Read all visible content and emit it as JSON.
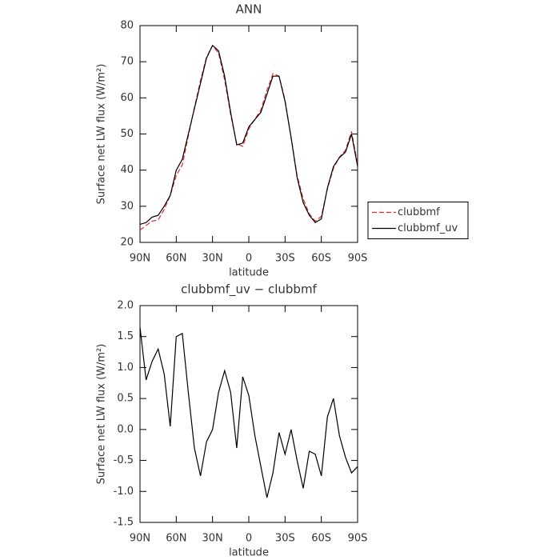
{
  "chart_data": [
    {
      "type": "line",
      "title": "ANN",
      "xlabel": "latitude",
      "ylabel": "Surface net LW flux (W/m²)",
      "x": [
        90,
        85,
        80,
        75,
        70,
        65,
        60,
        55,
        50,
        45,
        40,
        35,
        30,
        25,
        20,
        15,
        10,
        5,
        0,
        -5,
        -10,
        -15,
        -20,
        -25,
        -30,
        -35,
        -40,
        -45,
        -50,
        -55,
        -60,
        -65,
        -70,
        -75,
        -80,
        -85,
        -90
      ],
      "xlim": [
        90,
        -90
      ],
      "xticks": [
        {
          "value": 90,
          "label": "90N"
        },
        {
          "value": 60,
          "label": "60N"
        },
        {
          "value": 30,
          "label": "30N"
        },
        0,
        {
          "value": -30,
          "label": "30S"
        },
        {
          "value": -60,
          "label": "60S"
        },
        {
          "value": -90,
          "label": "90S"
        }
      ],
      "ylim": [
        20,
        80
      ],
      "yticks": [
        20,
        30,
        40,
        50,
        60,
        70,
        80
      ],
      "legend": "right",
      "series": [
        {
          "name": "clubbmf",
          "color": "#e8262b",
          "dash": true,
          "values": [
            23.4,
            24.7,
            25.9,
            26.2,
            29.1,
            33.0,
            38.5,
            41.5,
            49.4,
            57.3,
            64.8,
            71.2,
            74.5,
            72.4,
            65.0,
            55.4,
            47.3,
            46.6,
            51.4,
            54.1,
            56.6,
            62.1,
            66.7,
            66.0,
            59.4,
            49.0,
            38.5,
            32.0,
            27.9,
            25.9,
            27.2,
            34.8,
            40.5,
            43.6,
            45.5,
            50.7,
            41.6
          ]
        },
        {
          "name": "clubbmf_uv",
          "color": "#000000",
          "dash": false,
          "values": [
            25,
            25.5,
            27,
            27.5,
            30,
            33,
            40,
            43,
            50,
            57,
            64,
            71,
            74.5,
            73,
            66,
            56,
            47,
            47.5,
            52,
            54,
            56,
            61,
            66,
            66,
            59,
            49,
            38,
            31,
            27.5,
            25.5,
            26.5,
            35,
            41,
            43.5,
            45,
            50,
            41
          ]
        }
      ]
    },
    {
      "type": "line",
      "title": "clubbmf_uv − clubbmf",
      "xlabel": "latitude",
      "ylabel": "Surface net LW flux (W/m²)",
      "x": [
        90,
        85,
        80,
        75,
        70,
        65,
        60,
        55,
        50,
        45,
        40,
        35,
        30,
        25,
        20,
        15,
        10,
        5,
        0,
        -5,
        -10,
        -15,
        -20,
        -25,
        -30,
        -35,
        -40,
        -45,
        -50,
        -55,
        -60,
        -65,
        -70,
        -75,
        -80,
        -85,
        -90
      ],
      "xlim": [
        90,
        -90
      ],
      "xticks": [
        {
          "value": 90,
          "label": "90N"
        },
        {
          "value": 60,
          "label": "60N"
        },
        {
          "value": 30,
          "label": "30N"
        },
        0,
        {
          "value": -30,
          "label": "30S"
        },
        {
          "value": -60,
          "label": "60S"
        },
        {
          "value": -90,
          "label": "90S"
        }
      ],
      "ylim": [
        -1.5,
        2.0
      ],
      "yticks": [
        {
          "value": 2,
          "label": "2.0"
        },
        1.5,
        {
          "value": 1,
          "label": "1.0"
        },
        0.5,
        {
          "value": 0,
          "label": "0.0"
        },
        -0.5,
        {
          "value": -1,
          "label": "-1.0"
        },
        -1.5
      ],
      "color": "#000000",
      "values": [
        1.65,
        0.8,
        1.1,
        1.3,
        0.9,
        0.05,
        1.5,
        1.55,
        0.6,
        -0.3,
        -0.75,
        -0.2,
        0.0,
        0.6,
        0.95,
        0.6,
        -0.3,
        0.85,
        0.55,
        -0.1,
        -0.6,
        -1.1,
        -0.7,
        -0.05,
        -0.4,
        0.0,
        -0.5,
        -0.95,
        -0.35,
        -0.4,
        -0.75,
        0.2,
        0.5,
        -0.1,
        -0.45,
        -0.7,
        -0.6
      ]
    }
  ]
}
